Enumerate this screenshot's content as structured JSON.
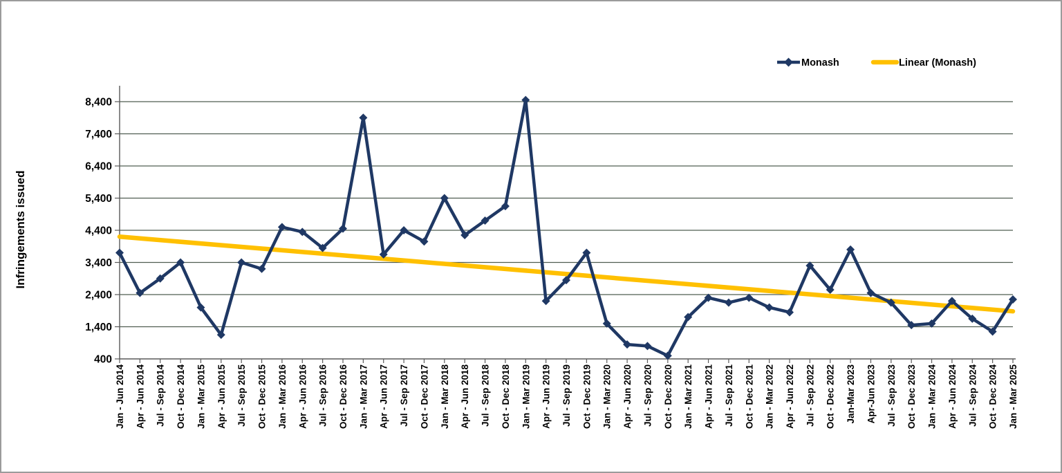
{
  "chart_data": {
    "type": "line",
    "title": "",
    "xlabel": "",
    "ylabel": "Infringements issued",
    "ylim": [
      400,
      8900
    ],
    "y_tick_labels": [
      "400",
      "1,400",
      "2,400",
      "3,400",
      "4,400",
      "5,400",
      "6,400",
      "7,400",
      "8,400"
    ],
    "y_tick_values": [
      400,
      1400,
      2400,
      3400,
      4400,
      5400,
      6400,
      7400,
      8400
    ],
    "grid": "horizontal major gridlines only",
    "legend_position": "top-right",
    "x_tick_label_rotation": -90,
    "categories": [
      "Jan - Jun 2014",
      "Apr - Jun 2014",
      "Jul - Sep 2014",
      "Oct - Dec 2014",
      "Jan - Mar 2015",
      "Apr - Jun 2015",
      "Jul - Sep 2015",
      "Oct - Dec 2015",
      "Jan - Mar 2016",
      "Apr - Jun 2016",
      "Jul - Sep 2016",
      "Oct - Dec 2016",
      "Jan - Mar 2017",
      "Apr - Jun 2017",
      "Jul - Sep 2017",
      "Oct - Dec 2017",
      "Jan - Mar 2018",
      "Apr - Jun 2018",
      "Jul - Sep 2018",
      "Oct - Dec 2018",
      "Jan - Mar 2019",
      "Apr - Jun 2019",
      "Jul - Sep 2019",
      "Oct - Dec 2019",
      "Jan - Mar 2020",
      "Apr - Jun 2020",
      "Jul - Sep 2020",
      "Oct - Dec 2020",
      "Jan - Mar 2021",
      "Apr - Jun 2021",
      "Jul - Sep 2021",
      "Oct - Dec 2021",
      "Jan - Mar 2022",
      "Apr - Jun 2022",
      "Jul - Sep 2022",
      "Oct - Dec 2022",
      "Jan-Mar 2023",
      "Apr-Jun 2023",
      "Jul - Sep 2023",
      "Oct - Dec 2023",
      "Jan - Mar 2024",
      "Apr - Jun 2024",
      "Jul - Sep 2024",
      "Oct - Dec 2024",
      "Jan - Mar 2025"
    ],
    "series": [
      {
        "name": "Monash",
        "color": "#1F3864",
        "marker": "diamond",
        "values": [
          3700,
          2450,
          2900,
          3400,
          2000,
          1150,
          3400,
          3200,
          4500,
          4350,
          3850,
          4450,
          7900,
          3650,
          4400,
          4050,
          5400,
          4250,
          4700,
          5150,
          8450,
          2200,
          2850,
          3700,
          1500,
          850,
          800,
          500,
          1700,
          2300,
          2150,
          2300,
          2000,
          1850,
          3300,
          2550,
          3800,
          2450,
          2150,
          1450,
          1500,
          2200,
          1650,
          1250,
          2250
        ]
      },
      {
        "name": "Linear (Monash)",
        "color": "#FFC000",
        "style": "trendline",
        "endpoints": {
          "start": 4200,
          "end": 1880
        }
      }
    ]
  },
  "colors": {
    "gridline": "#4f5d51",
    "axis": "#595959",
    "text": "#000000",
    "background": "#ffffff",
    "frame_border": "#9b9b9b"
  }
}
